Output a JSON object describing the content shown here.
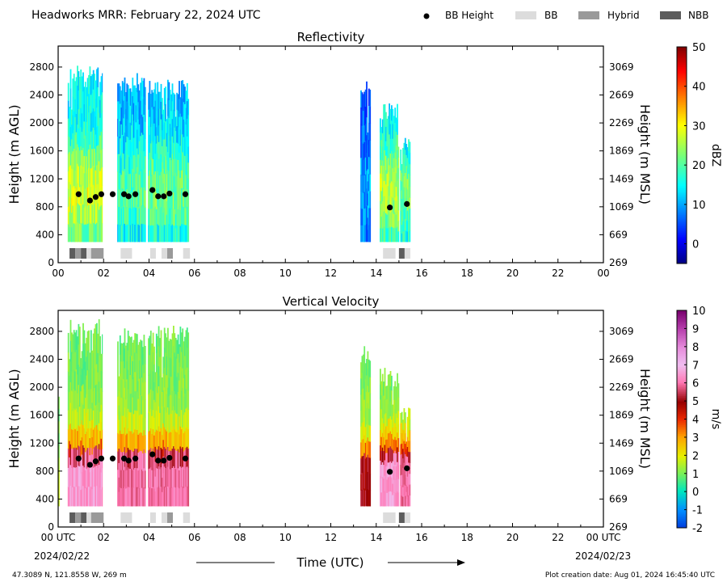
{
  "header": {
    "title": "Headworks MRR:  February 22, 2024 UTC",
    "legend": [
      {
        "kind": "dot",
        "label": "BB Height",
        "color": "#000000"
      },
      {
        "kind": "rect",
        "label": "BB",
        "color": "#dcdcdc"
      },
      {
        "kind": "rect",
        "label": "Hybrid",
        "color": "#9a9a9a"
      },
      {
        "kind": "rect",
        "label": "NBB",
        "color": "#5c5c5c"
      }
    ]
  },
  "footer": {
    "location": "47.3089 N, 121.8558 W, 269 m",
    "created": "Plot creation date: Aug 01, 2024 16:45:40 UTC",
    "xlabel": "Time (UTC)",
    "date_start": "2024/02/22",
    "date_end": "2024/02/23"
  },
  "chart_data": [
    {
      "type": "heatmap",
      "title": "Reflectivity",
      "ylabel": "Height (m AGL)",
      "ylabel_right": "Height (m MSL)",
      "xlim": [
        0,
        24
      ],
      "ylim": [
        0,
        3100
      ],
      "xticks": [
        "00",
        "02",
        "04",
        "06",
        "08",
        "10",
        "12",
        "14",
        "16",
        "18",
        "20",
        "22",
        "00"
      ],
      "yticks": [
        0,
        400,
        800,
        1200,
        1600,
        2000,
        2400,
        2800
      ],
      "yticks_right": [
        "269",
        "669",
        "1069",
        "1469",
        "1869",
        "2269",
        "2669",
        "3069"
      ],
      "colorbar": {
        "label": "dBZ",
        "min": -5,
        "max": 50,
        "ticks": [
          0,
          10,
          20,
          30,
          40,
          50
        ],
        "colormap": "jet"
      },
      "echo_bottom": 300,
      "echo_spans": [
        {
          "start": 0.42,
          "end": 1.95,
          "top": 2850,
          "peak": 28
        },
        {
          "start": 2.6,
          "end": 3.85,
          "top": 2720,
          "peak": 20
        },
        {
          "start": 3.95,
          "end": 5.75,
          "top": 2620,
          "peak": 22
        },
        {
          "start": 13.3,
          "end": 13.75,
          "top": 2600,
          "peak": 10
        },
        {
          "start": 14.15,
          "end": 15.0,
          "top": 2280,
          "peak": 26
        },
        {
          "start": 15.05,
          "end": 15.5,
          "top": 1800,
          "peak": 22
        }
      ],
      "bb_height": [
        {
          "t": 0.9,
          "h": 980
        },
        {
          "t": 1.4,
          "h": 890
        },
        {
          "t": 1.65,
          "h": 940
        },
        {
          "t": 1.9,
          "h": 980
        },
        {
          "t": 2.4,
          "h": 980
        },
        {
          "t": 2.9,
          "h": 980
        },
        {
          "t": 3.1,
          "h": 950
        },
        {
          "t": 3.4,
          "h": 980
        },
        {
          "t": 4.15,
          "h": 1040
        },
        {
          "t": 4.4,
          "h": 950
        },
        {
          "t": 4.65,
          "h": 950
        },
        {
          "t": 4.9,
          "h": 990
        },
        {
          "t": 5.6,
          "h": 980
        },
        {
          "t": 14.6,
          "h": 790
        },
        {
          "t": 15.35,
          "h": 840
        }
      ],
      "bb_type": [
        {
          "start": 0.5,
          "end": 0.75,
          "type": "NBB"
        },
        {
          "start": 0.75,
          "end": 1.0,
          "type": "Hybrid"
        },
        {
          "start": 1.0,
          "end": 1.25,
          "type": "NBB"
        },
        {
          "start": 1.25,
          "end": 1.45,
          "type": "BB"
        },
        {
          "start": 1.45,
          "end": 2.0,
          "type": "Hybrid"
        },
        {
          "start": 2.75,
          "end": 3.25,
          "type": "BB"
        },
        {
          "start": 4.05,
          "end": 4.3,
          "type": "BB"
        },
        {
          "start": 4.55,
          "end": 4.8,
          "type": "BB"
        },
        {
          "start": 4.8,
          "end": 5.05,
          "type": "Hybrid"
        },
        {
          "start": 5.5,
          "end": 5.8,
          "type": "BB"
        },
        {
          "start": 14.3,
          "end": 14.85,
          "type": "BB"
        },
        {
          "start": 15.0,
          "end": 15.25,
          "type": "NBB"
        },
        {
          "start": 15.25,
          "end": 15.5,
          "type": "BB"
        }
      ]
    },
    {
      "type": "heatmap",
      "title": "Vertical Velocity",
      "ylabel": "Height (m AGL)",
      "ylabel_right": "Height (m MSL)",
      "xlim": [
        0,
        24
      ],
      "ylim": [
        0,
        3100
      ],
      "xticks": [
        "00 UTC",
        "02",
        "04",
        "06",
        "08",
        "10",
        "12",
        "14",
        "16",
        "18",
        "20",
        "22",
        "00 UTC"
      ],
      "yticks": [
        0,
        400,
        800,
        1200,
        1600,
        2000,
        2400,
        2800
      ],
      "yticks_right": [
        "269",
        "669",
        "1069",
        "1469",
        "1869",
        "2269",
        "2669",
        "3069"
      ],
      "colorbar": {
        "label": "m/s",
        "min": -2,
        "max": 10,
        "ticks": [
          -2,
          -1,
          0,
          1,
          2,
          3,
          4,
          5,
          6,
          7,
          8,
          9,
          10
        ],
        "colormap": "velocity"
      },
      "echo_bottom": 300,
      "echo_spans": [
        {
          "start": 0.0,
          "end": 0.05,
          "top": 2350,
          "peak": 1.5
        },
        {
          "start": 0.42,
          "end": 1.95,
          "top": 2980,
          "peak": 6.5
        },
        {
          "start": 2.6,
          "end": 3.85,
          "top": 2850,
          "peak": 6
        },
        {
          "start": 3.95,
          "end": 5.75,
          "top": 2880,
          "peak": 6
        },
        {
          "start": 13.3,
          "end": 13.75,
          "top": 2600,
          "peak": 5
        },
        {
          "start": 14.15,
          "end": 15.0,
          "top": 2280,
          "peak": 6.5
        },
        {
          "start": 15.05,
          "end": 15.5,
          "top": 1800,
          "peak": 6
        }
      ],
      "bb_height": [
        {
          "t": 0.9,
          "h": 980
        },
        {
          "t": 1.4,
          "h": 890
        },
        {
          "t": 1.65,
          "h": 940
        },
        {
          "t": 1.9,
          "h": 980
        },
        {
          "t": 2.4,
          "h": 980
        },
        {
          "t": 2.9,
          "h": 980
        },
        {
          "t": 3.1,
          "h": 950
        },
        {
          "t": 3.4,
          "h": 980
        },
        {
          "t": 4.15,
          "h": 1040
        },
        {
          "t": 4.4,
          "h": 950
        },
        {
          "t": 4.65,
          "h": 950
        },
        {
          "t": 4.9,
          "h": 990
        },
        {
          "t": 5.6,
          "h": 980
        },
        {
          "t": 14.6,
          "h": 790
        },
        {
          "t": 15.35,
          "h": 840
        }
      ],
      "bb_type": [
        {
          "start": 0.5,
          "end": 0.75,
          "type": "NBB"
        },
        {
          "start": 0.75,
          "end": 1.0,
          "type": "Hybrid"
        },
        {
          "start": 1.0,
          "end": 1.25,
          "type": "NBB"
        },
        {
          "start": 1.25,
          "end": 1.45,
          "type": "BB"
        },
        {
          "start": 1.45,
          "end": 2.0,
          "type": "Hybrid"
        },
        {
          "start": 2.75,
          "end": 3.25,
          "type": "BB"
        },
        {
          "start": 4.05,
          "end": 4.3,
          "type": "BB"
        },
        {
          "start": 4.55,
          "end": 4.8,
          "type": "BB"
        },
        {
          "start": 4.8,
          "end": 5.05,
          "type": "Hybrid"
        },
        {
          "start": 5.5,
          "end": 5.8,
          "type": "BB"
        },
        {
          "start": 14.3,
          "end": 14.85,
          "type": "BB"
        },
        {
          "start": 15.0,
          "end": 15.25,
          "type": "NBB"
        },
        {
          "start": 15.25,
          "end": 15.5,
          "type": "BB"
        }
      ]
    }
  ]
}
